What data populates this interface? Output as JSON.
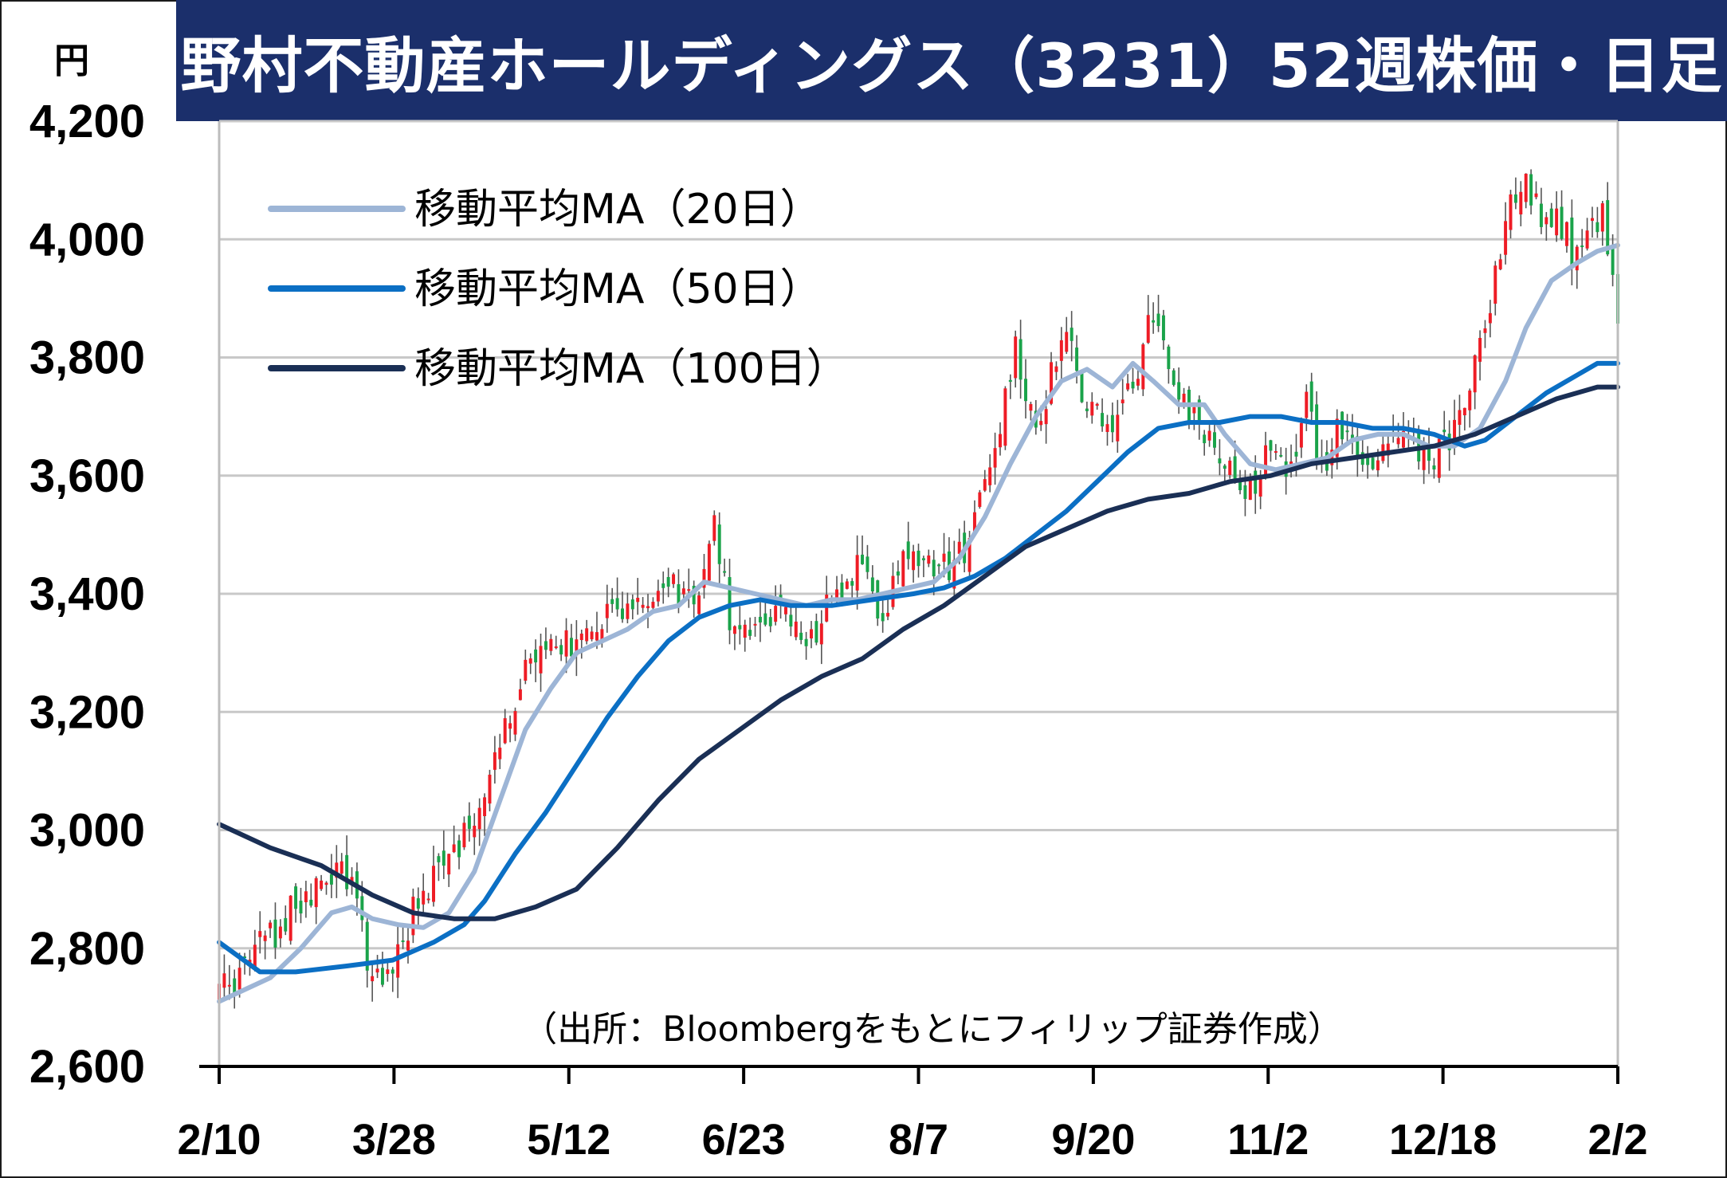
{
  "title": "野村不動産ホールディングス（3231）52週株価・日足",
  "unit_label": "円",
  "source_note": "（出所：Bloombergをもとにフィリップ証券作成）",
  "colors": {
    "title_bg": "#1b2f6b",
    "up_candle": "#ee1c25",
    "down_candle": "#1aa34a",
    "ma20": "#9db5d6",
    "ma50": "#0b6fc4",
    "ma100": "#1a2f55",
    "grid": "#c8c8c8"
  },
  "chart_data": {
    "type": "candlestick",
    "title": "野村不動産ホールディングス（3231）52週株価・日足",
    "ylabel": "円",
    "ylim": [
      2600,
      4200
    ],
    "yticks": [
      "2,600",
      "2,800",
      "3,000",
      "3,200",
      "3,400",
      "3,600",
      "3,800",
      "4,000",
      "4,200"
    ],
    "ytick_values": [
      2600,
      2800,
      3000,
      3200,
      3400,
      3600,
      3800,
      4000,
      4200
    ],
    "xtick_labels": [
      "2/10",
      "3/28",
      "5/12",
      "6/23",
      "8/7",
      "9/20",
      "11/2",
      "12/18",
      "2/2"
    ],
    "xtick_index": [
      0,
      32,
      64,
      96,
      128,
      160,
      192,
      224,
      256
    ],
    "n_days": 257,
    "grid": true,
    "legend_position": "top-left",
    "price_path_anchors": [
      [
        0,
        2720
      ],
      [
        10,
        2820
      ],
      [
        20,
        2920
      ],
      [
        24,
        2940
      ],
      [
        27,
        2880
      ],
      [
        29,
        2790
      ],
      [
        33,
        2740
      ],
      [
        38,
        2860
      ],
      [
        46,
        2960
      ],
      [
        52,
        3060
      ],
      [
        57,
        3200
      ],
      [
        60,
        3290
      ],
      [
        66,
        3300
      ],
      [
        72,
        3340
      ],
      [
        78,
        3380
      ],
      [
        84,
        3390
      ],
      [
        88,
        3420
      ],
      [
        94,
        3400
      ],
      [
        97,
        3520
      ],
      [
        100,
        3350
      ],
      [
        105,
        3360
      ],
      [
        110,
        3380
      ],
      [
        115,
        3300
      ],
      [
        120,
        3400
      ],
      [
        125,
        3440
      ],
      [
        130,
        3360
      ],
      [
        135,
        3480
      ],
      [
        141,
        3430
      ],
      [
        146,
        3470
      ],
      [
        150,
        3600
      ],
      [
        153,
        3700
      ],
      [
        156,
        3830
      ],
      [
        160,
        3660
      ],
      [
        165,
        3850
      ],
      [
        170,
        3730
      ],
      [
        175,
        3680
      ],
      [
        179,
        3760
      ],
      [
        183,
        3870
      ],
      [
        189,
        3720
      ],
      [
        193,
        3660
      ],
      [
        197,
        3620
      ],
      [
        201,
        3540
      ],
      [
        205,
        3650
      ],
      [
        209,
        3600
      ],
      [
        213,
        3720
      ],
      [
        216,
        3620
      ],
      [
        219,
        3670
      ],
      [
        224,
        3610
      ],
      [
        229,
        3680
      ],
      [
        233,
        3660
      ],
      [
        237,
        3620
      ],
      [
        240,
        3650
      ],
      [
        244,
        3700
      ],
      [
        247,
        3820
      ],
      [
        250,
        3940
      ],
      [
        253,
        4080
      ],
      [
        256,
        4110
      ],
      [
        259,
        4020
      ],
      [
        262,
        4060
      ],
      [
        265,
        3970
      ],
      [
        268,
        3990
      ],
      [
        271,
        4050
      ],
      [
        274,
        3880
      ]
    ],
    "series": [
      {
        "name": "移動平均MA（20日）",
        "values": [
          [
            0,
            2710
          ],
          [
            10,
            2750
          ],
          [
            16,
            2800
          ],
          [
            22,
            2860
          ],
          [
            26,
            2870
          ],
          [
            30,
            2850
          ],
          [
            35,
            2840
          ],
          [
            40,
            2835
          ],
          [
            45,
            2860
          ],
          [
            50,
            2930
          ],
          [
            55,
            3050
          ],
          [
            60,
            3170
          ],
          [
            65,
            3240
          ],
          [
            70,
            3300
          ],
          [
            75,
            3320
          ],
          [
            80,
            3340
          ],
          [
            85,
            3370
          ],
          [
            90,
            3380
          ],
          [
            95,
            3420
          ],
          [
            100,
            3410
          ],
          [
            105,
            3400
          ],
          [
            110,
            3390
          ],
          [
            115,
            3380
          ],
          [
            120,
            3390
          ],
          [
            125,
            3390
          ],
          [
            130,
            3400
          ],
          [
            135,
            3410
          ],
          [
            140,
            3420
          ],
          [
            145,
            3460
          ],
          [
            150,
            3530
          ],
          [
            155,
            3620
          ],
          [
            160,
            3700
          ],
          [
            165,
            3760
          ],
          [
            170,
            3780
          ],
          [
            175,
            3750
          ],
          [
            179,
            3790
          ],
          [
            183,
            3760
          ],
          [
            188,
            3720
          ],
          [
            193,
            3720
          ],
          [
            197,
            3670
          ],
          [
            202,
            3620
          ],
          [
            207,
            3610
          ],
          [
            212,
            3620
          ],
          [
            217,
            3630
          ],
          [
            222,
            3660
          ],
          [
            227,
            3670
          ],
          [
            232,
            3670
          ],
          [
            237,
            3650
          ],
          [
            242,
            3650
          ],
          [
            247,
            3680
          ],
          [
            252,
            3760
          ],
          [
            256,
            3850
          ],
          [
            261,
            3930
          ],
          [
            266,
            3960
          ],
          [
            270,
            3980
          ],
          [
            274,
            3990
          ]
        ]
      },
      {
        "name": "移動平均MA（50日）",
        "values": [
          [
            0,
            2810
          ],
          [
            8,
            2760
          ],
          [
            15,
            2760
          ],
          [
            25,
            2770
          ],
          [
            34,
            2780
          ],
          [
            42,
            2810
          ],
          [
            48,
            2840
          ],
          [
            52,
            2880
          ],
          [
            58,
            2960
          ],
          [
            64,
            3030
          ],
          [
            70,
            3110
          ],
          [
            76,
            3190
          ],
          [
            82,
            3260
          ],
          [
            88,
            3320
          ],
          [
            94,
            3360
          ],
          [
            100,
            3380
          ],
          [
            106,
            3390
          ],
          [
            112,
            3380
          ],
          [
            120,
            3380
          ],
          [
            128,
            3390
          ],
          [
            136,
            3400
          ],
          [
            142,
            3410
          ],
          [
            148,
            3430
          ],
          [
            154,
            3460
          ],
          [
            160,
            3500
          ],
          [
            166,
            3540
          ],
          [
            172,
            3590
          ],
          [
            178,
            3640
          ],
          [
            184,
            3680
          ],
          [
            190,
            3690
          ],
          [
            196,
            3690
          ],
          [
            202,
            3700
          ],
          [
            208,
            3700
          ],
          [
            214,
            3690
          ],
          [
            220,
            3690
          ],
          [
            226,
            3680
          ],
          [
            232,
            3680
          ],
          [
            238,
            3670
          ],
          [
            244,
            3650
          ],
          [
            248,
            3660
          ],
          [
            254,
            3700
          ],
          [
            260,
            3740
          ],
          [
            266,
            3770
          ],
          [
            270,
            3790
          ],
          [
            274,
            3790
          ]
        ]
      },
      {
        "name": "移動平均MA（100日）",
        "values": [
          [
            0,
            3010
          ],
          [
            10,
            2970
          ],
          [
            20,
            2940
          ],
          [
            30,
            2890
          ],
          [
            38,
            2860
          ],
          [
            46,
            2850
          ],
          [
            54,
            2850
          ],
          [
            62,
            2870
          ],
          [
            70,
            2900
          ],
          [
            78,
            2970
          ],
          [
            86,
            3050
          ],
          [
            94,
            3120
          ],
          [
            102,
            3170
          ],
          [
            110,
            3220
          ],
          [
            118,
            3260
          ],
          [
            126,
            3290
          ],
          [
            134,
            3340
          ],
          [
            142,
            3380
          ],
          [
            150,
            3430
          ],
          [
            158,
            3480
          ],
          [
            166,
            3510
          ],
          [
            174,
            3540
          ],
          [
            182,
            3560
          ],
          [
            190,
            3570
          ],
          [
            198,
            3590
          ],
          [
            206,
            3600
          ],
          [
            214,
            3620
          ],
          [
            222,
            3630
          ],
          [
            230,
            3640
          ],
          [
            238,
            3650
          ],
          [
            246,
            3670
          ],
          [
            254,
            3700
          ],
          [
            262,
            3730
          ],
          [
            270,
            3750
          ],
          [
            274,
            3750
          ]
        ]
      }
    ],
    "legend": [
      {
        "label": "移動平均MA（20日）",
        "color": "#9db5d6"
      },
      {
        "label": "移動平均MA（50日）",
        "color": "#0b6fc4"
      },
      {
        "label": "移動平均MA（100日）",
        "color": "#1a2f55"
      }
    ]
  }
}
